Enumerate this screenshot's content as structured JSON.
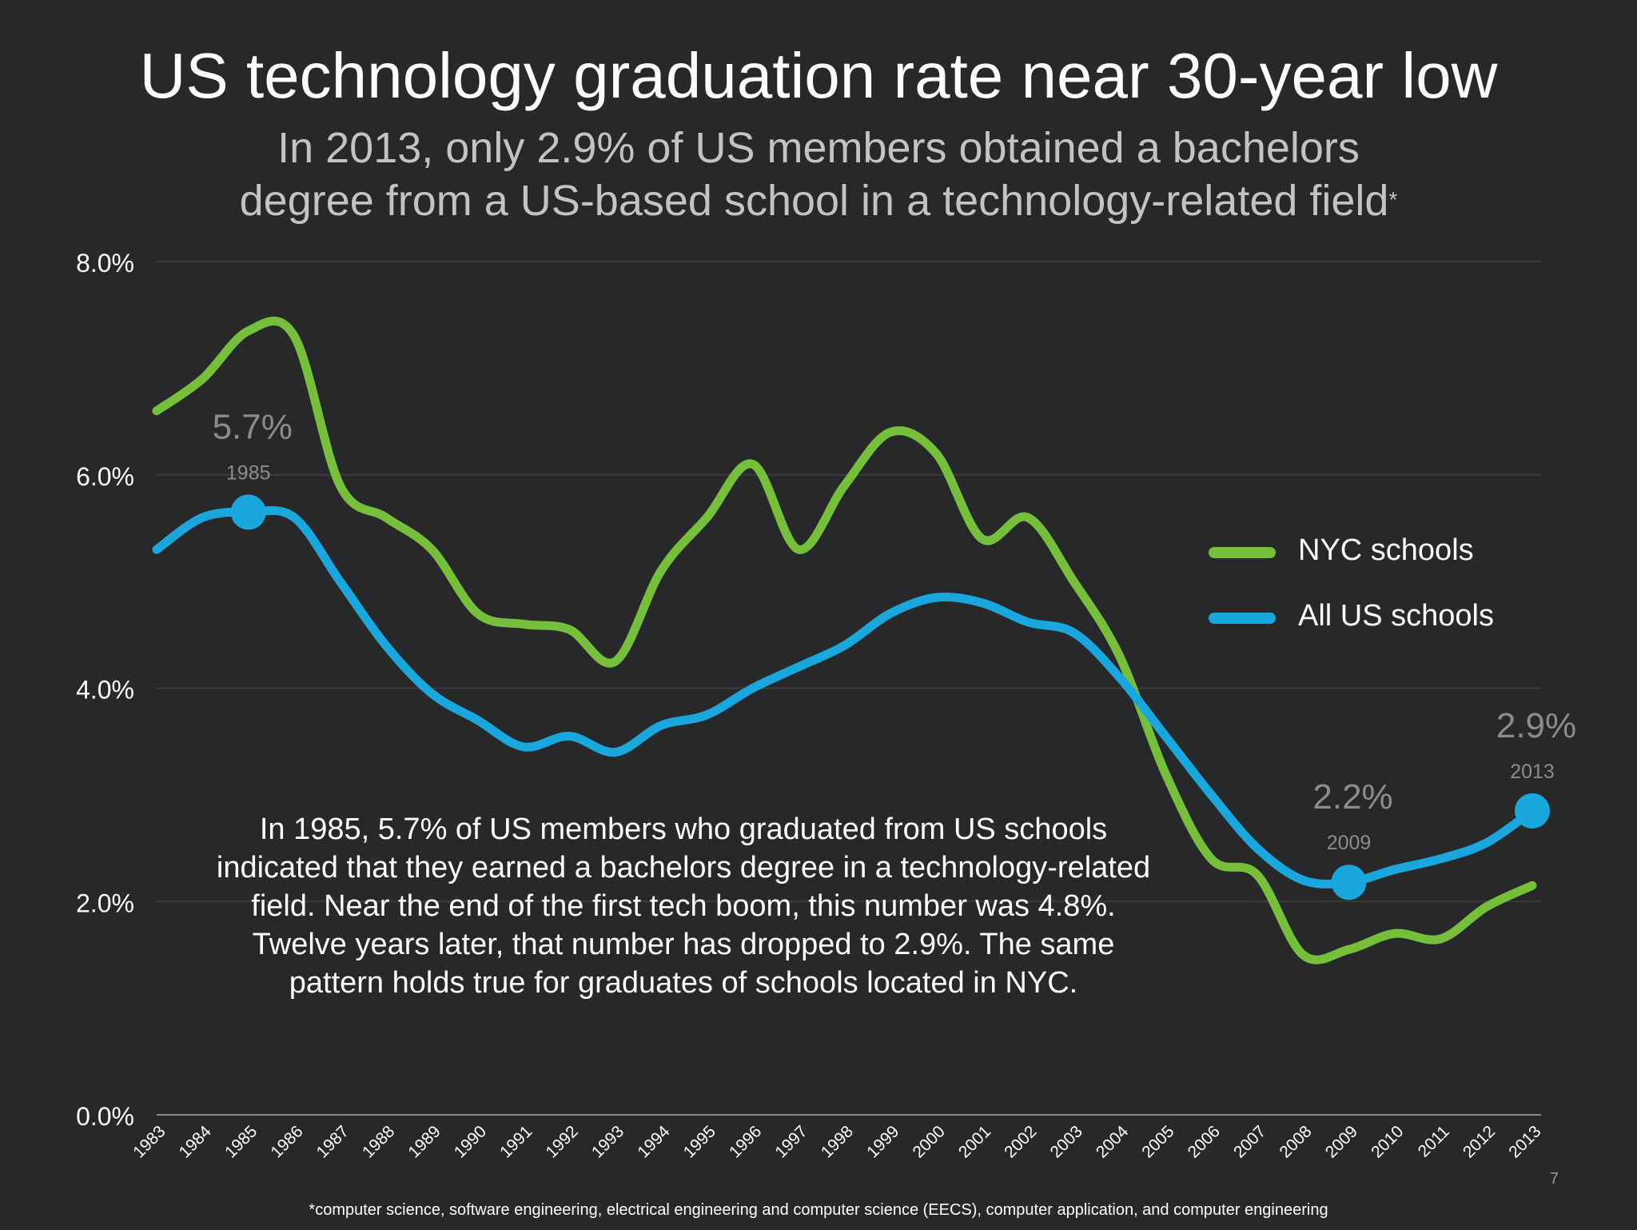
{
  "title": "US technology graduation rate near 30-year low",
  "subtitle_line1": "In 2013, only 2.9% of US members obtained a bachelors",
  "subtitle_line2": "degree from a US-based school in a technology-related field",
  "subtitle_mark": "*",
  "note": "In 1985, 5.7% of US members who graduated from US schools indicated that they earned a bachelors degree in a technology-related field. Near the end of the first tech boom, this number was 4.8%. Twelve years later, that number has dropped to 2.9%. The same pattern holds true for graduates of schools located in NYC.",
  "footnote": "*computer science, software engineering, electrical engineering and computer science (EECS), computer application, and computer engineering",
  "page_number": "7",
  "colors": {
    "background": "#272829",
    "nyc": "#76bf3a",
    "us": "#1aa7dd",
    "annotation": "#8c8c8c",
    "grid": "#3c3d3e",
    "axis": "#8a8a8a"
  },
  "chart_data": {
    "type": "line",
    "x": [
      1983,
      1984,
      1985,
      1986,
      1987,
      1988,
      1989,
      1990,
      1991,
      1992,
      1993,
      1994,
      1995,
      1996,
      1997,
      1998,
      1999,
      2000,
      2001,
      2002,
      2003,
      2004,
      2005,
      2006,
      2007,
      2008,
      2009,
      2010,
      2011,
      2012,
      2013
    ],
    "x_tick_labels": [
      "1983",
      "1984",
      "1985",
      "1986",
      "1987",
      "1988",
      "1989",
      "1990",
      "1991",
      "1992",
      "1993",
      "1994",
      "1995",
      "1996",
      "1997",
      "1998",
      "1999",
      "2000",
      "2001",
      "2002",
      "2003",
      "2004",
      "2005",
      "2006",
      "2007",
      "2008",
      "2009",
      "2010",
      "2011",
      "2012",
      "2013"
    ],
    "y_tick_labels": [
      "0.0%",
      "2.0%",
      "4.0%",
      "6.0%",
      "8.0%"
    ],
    "y_ticks": [
      0,
      2,
      4,
      6,
      8
    ],
    "ylim": [
      0,
      8
    ],
    "y_unit": "%",
    "grid": true,
    "legend_position": "right",
    "series": [
      {
        "name": "NYC schools",
        "color": "#76bf3a",
        "values": [
          6.6,
          6.9,
          7.35,
          7.3,
          5.9,
          5.6,
          5.3,
          4.7,
          4.6,
          4.55,
          4.25,
          5.1,
          5.6,
          6.1,
          5.3,
          5.9,
          6.4,
          6.2,
          5.4,
          5.6,
          5.0,
          4.3,
          3.2,
          2.4,
          2.25,
          1.5,
          1.55,
          1.7,
          1.65,
          1.95,
          2.15
        ]
      },
      {
        "name": "All US schools",
        "color": "#1aa7dd",
        "values": [
          5.3,
          5.6,
          5.65,
          5.6,
          5.0,
          4.4,
          3.95,
          3.7,
          3.45,
          3.55,
          3.4,
          3.65,
          3.75,
          4.0,
          4.2,
          4.4,
          4.7,
          4.85,
          4.8,
          4.62,
          4.52,
          4.1,
          3.55,
          3.0,
          2.5,
          2.2,
          2.18,
          2.3,
          2.4,
          2.55,
          2.85
        ]
      }
    ],
    "annotations": [
      {
        "series": "All US schools",
        "x": 1985,
        "value_label": "5.7%",
        "year_label": "1985"
      },
      {
        "series": "All US schools",
        "x": 2009,
        "value_label": "2.2%",
        "year_label": "2009"
      },
      {
        "series": "All US schools",
        "x": 2013,
        "value_label": "2.9%",
        "year_label": "2013"
      }
    ]
  }
}
